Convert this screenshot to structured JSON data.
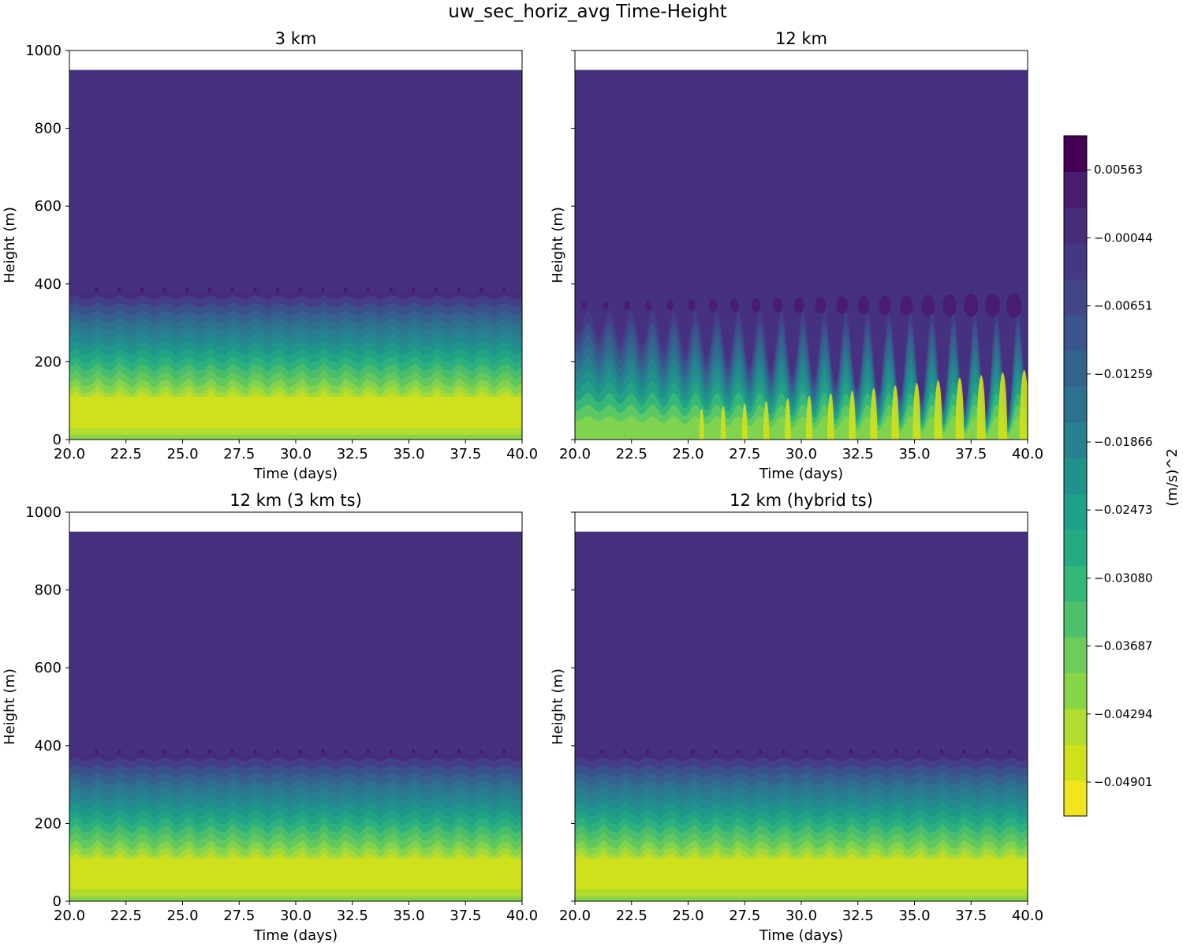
{
  "figure": {
    "suptitle": "uw_sec_horiz_avg Time-Height"
  },
  "chart_data": {
    "type": "heatmap",
    "title": "uw_sec_horiz_avg Time-Height",
    "panels": [
      {
        "title": "3 km",
        "xlabel": "Time (days)",
        "ylabel": "Height (m)",
        "xlim": [
          20,
          40
        ],
        "ylim": [
          0,
          1000
        ],
        "data_top": 950,
        "xticks": [
          "20.0",
          "22.5",
          "25.0",
          "27.5",
          "30.0",
          "32.5",
          "35.0",
          "37.5",
          "40.0"
        ],
        "yticks": [
          "0",
          "200",
          "400",
          "600",
          "800",
          "1000"
        ],
        "show_ytick_labels": true,
        "oscillation": "weak"
      },
      {
        "title": "12 km",
        "xlabel": "Time (days)",
        "ylabel": "Height (m)",
        "xlim": [
          20,
          40
        ],
        "ylim": [
          0,
          1000
        ],
        "data_top": 950,
        "xticks": [
          "20.0",
          "22.5",
          "25.0",
          "27.5",
          "30.0",
          "32.5",
          "35.0",
          "37.5",
          "40.0"
        ],
        "yticks": [
          "0",
          "200",
          "400",
          "600",
          "800",
          "1000"
        ],
        "show_ytick_labels": false,
        "oscillation": "strong-growing"
      },
      {
        "title": "12 km (3 km ts)",
        "xlabel": "Time (days)",
        "ylabel": "Height (m)",
        "xlim": [
          20,
          40
        ],
        "ylim": [
          0,
          1000
        ],
        "data_top": 950,
        "xticks": [
          "20.0",
          "22.5",
          "25.0",
          "27.5",
          "30.0",
          "32.5",
          "35.0",
          "37.5",
          "40.0"
        ],
        "yticks": [
          "0",
          "200",
          "400",
          "600",
          "800",
          "1000"
        ],
        "show_ytick_labels": true,
        "oscillation": "weak"
      },
      {
        "title": "12 km (hybrid ts)",
        "xlabel": "Time (days)",
        "ylabel": "Height (m)",
        "xlim": [
          20,
          40
        ],
        "ylim": [
          0,
          1000
        ],
        "data_top": 950,
        "xticks": [
          "20.0",
          "22.5",
          "25.0",
          "27.5",
          "30.0",
          "32.5",
          "35.0",
          "37.5",
          "40.0"
        ],
        "yticks": [
          "0",
          "200",
          "400",
          "600",
          "800",
          "1000"
        ],
        "show_ytick_labels": false,
        "oscillation": "weak"
      }
    ],
    "colorbar": {
      "label": "(m/s)^2",
      "vmin": -0.05204,
      "vmax": 0.00867,
      "ticks": [
        "0.00563",
        "−0.00044",
        "−0.00651",
        "−0.01259",
        "−0.01866",
        "−0.02473",
        "−0.03080",
        "−0.03687",
        "−0.04294",
        "−0.04901"
      ],
      "tick_values": [
        0.00563,
        -0.00044,
        -0.00651,
        -0.01259,
        -0.01866,
        -0.02473,
        -0.0308,
        -0.03687,
        -0.04294,
        -0.04901
      ],
      "levels_count": 19,
      "colors": [
        "#f0e51f",
        "#d0e11c",
        "#b0dd2f",
        "#89d548",
        "#6ccd5a",
        "#4fc16a",
        "#35b779",
        "#25ab82",
        "#1fa088",
        "#21918c",
        "#26828e",
        "#2c728e",
        "#33638d",
        "#39558c",
        "#404688",
        "#453781",
        "#472c7a",
        "#481d6f",
        "#440154"
      ]
    }
  }
}
